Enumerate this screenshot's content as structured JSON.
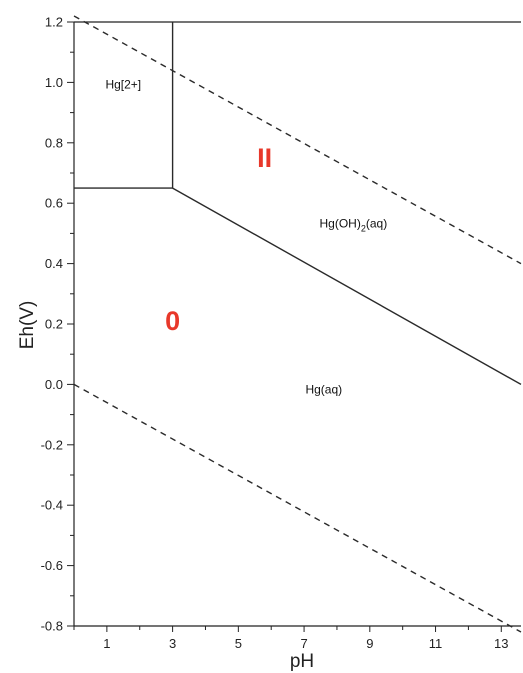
{
  "chart_data": {
    "type": "line",
    "xlabel": "pH",
    "ylabel": "Eh(V)",
    "xlim": [
      0,
      13.6
    ],
    "ylim": [
      -0.8,
      1.2
    ],
    "x_ticks": [
      1,
      3,
      5,
      7,
      9,
      11,
      13
    ],
    "y_ticks": [
      1.2,
      1.0,
      0.8,
      0.6,
      0.4,
      0.2,
      0.0,
      -0.2,
      -0.4,
      -0.6,
      -0.8
    ],
    "y_tick_labels": [
      "1.2",
      "1.0",
      "0.8",
      "0.6",
      "0.4",
      "0.2",
      "0.0",
      "-0.2",
      "-0.4",
      "-0.6",
      "-0.8"
    ],
    "grid": false,
    "series": [
      {
        "style": "solid",
        "points": [
          [
            0,
            0.65
          ],
          [
            3.0,
            0.65
          ]
        ]
      },
      {
        "style": "solid",
        "points": [
          [
            3.0,
            0.65
          ],
          [
            3.0,
            1.2
          ]
        ]
      },
      {
        "style": "solid",
        "points": [
          [
            3.0,
            0.65
          ],
          [
            13.6,
            0.0
          ]
        ]
      },
      {
        "style": "dashed",
        "points": [
          [
            0,
            1.22
          ],
          [
            13.6,
            0.4
          ]
        ]
      },
      {
        "style": "dashed",
        "points": [
          [
            0,
            0.0
          ],
          [
            13.6,
            -0.82
          ]
        ]
      }
    ],
    "region_labels": [
      {
        "text": "Hg[2+]",
        "x": 1.5,
        "y": 0.98
      },
      {
        "text": "Hg(OH)",
        "subscript": "2",
        "suffix": "(aq)",
        "x": 8.5,
        "y": 0.52
      },
      {
        "text": "Hg(aq)",
        "x": 7.6,
        "y": -0.03
      }
    ],
    "oxidation_labels": [
      {
        "text": "II",
        "x": 5.8,
        "y": 0.72,
        "color": "#e8382a"
      },
      {
        "text": "0",
        "x": 3.0,
        "y": 0.18,
        "color": "#e8382a"
      }
    ]
  }
}
